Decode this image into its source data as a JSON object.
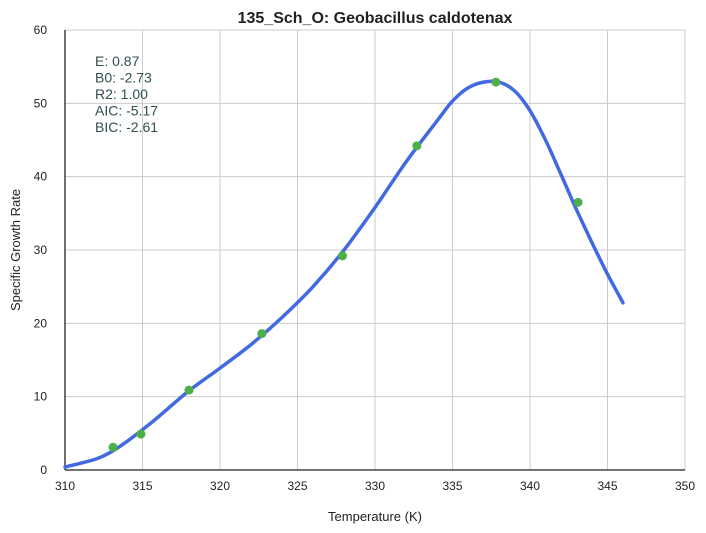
{
  "chart_data": {
    "type": "scatter",
    "title": "135_Sch_O: Geobacillus caldotenax",
    "xlabel": "Temperature (K)",
    "ylabel": "Specific Growth Rate",
    "xlim": [
      310,
      350
    ],
    "ylim": [
      0,
      60
    ],
    "xticks": [
      "310",
      "315",
      "320",
      "325",
      "330",
      "335",
      "340",
      "345",
      "350"
    ],
    "yticks": [
      "0",
      "10",
      "20",
      "30",
      "40",
      "50",
      "60"
    ],
    "grid": true,
    "annotations": [
      "E:  0.87",
      "B0:  -2.73",
      "R2:  1.00",
      "AIC: -5.17",
      "BIC: -2.61"
    ],
    "colors": {
      "points": "#4daf4a",
      "fit": "#4169e1",
      "annotation": "#2f4f4f",
      "grid": "#cccccc"
    },
    "series": [
      {
        "kind": "points",
        "x": [
          313.1,
          314.9,
          318.0,
          322.7,
          327.9,
          332.7,
          337.8,
          343.1
        ],
        "y": [
          3.1,
          4.9,
          10.9,
          18.6,
          29.2,
          44.2,
          52.9,
          36.5
        ]
      },
      {
        "kind": "fit-line",
        "x": [
          310,
          312,
          313,
          314,
          315,
          316,
          318,
          320,
          322,
          324,
          326,
          328,
          330,
          332,
          334,
          335,
          336,
          337,
          338,
          339,
          340,
          341,
          342,
          343,
          344,
          345,
          346
        ],
        "y": [
          0.4,
          1.5,
          2.5,
          3.9,
          5.5,
          7.2,
          10.8,
          13.9,
          17.1,
          20.8,
          25.0,
          30.0,
          35.8,
          42.0,
          47.6,
          50.3,
          52.1,
          52.9,
          52.9,
          51.7,
          49.0,
          45.0,
          40.3,
          35.5,
          31.0,
          26.7,
          22.8
        ]
      }
    ]
  }
}
